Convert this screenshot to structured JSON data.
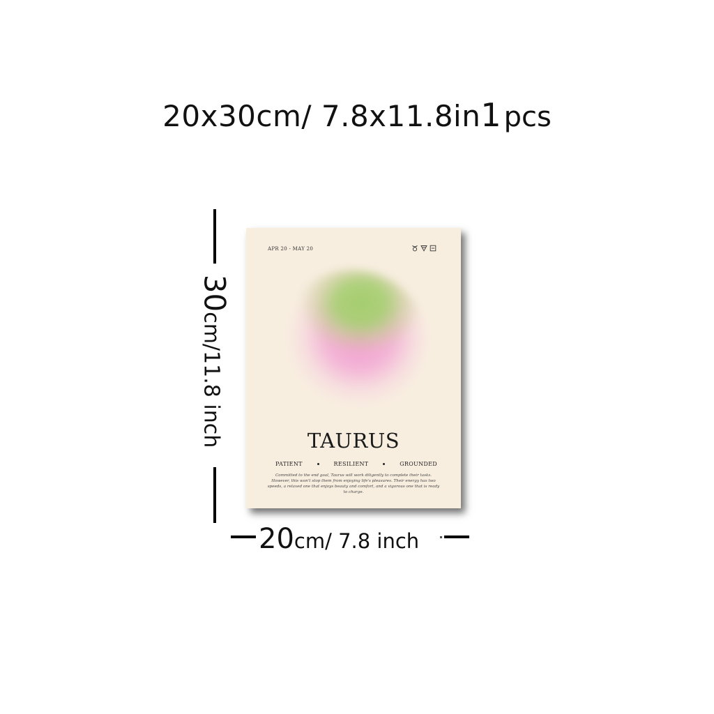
{
  "header": {
    "size_text": "20x30cm/ 7.8x11.8in",
    "quantity_number": "1",
    "quantity_unit": "pcs"
  },
  "poster": {
    "date_range": "APR 20 - MAY 20",
    "symbols": [
      "taurus-icon",
      "earth-triangle-icon",
      "fixed-square-icon"
    ],
    "title": "TAURUS",
    "traits": [
      "PATIENT",
      "RESILIENT",
      "GROUNDED"
    ],
    "description": "Committed to the end goal, Taurus will work diligently to complete their tasks. However, this won't stop them from enjoying life's pleasures. Their energy has two speeds, a relaxed one that enjoys beauty and comfort, and a vigorous one that is ready to charge.",
    "colors": {
      "background": "#f8eee0",
      "orb_green": "#a5cd6e",
      "orb_pink": "#f096cd"
    }
  },
  "dimensions": {
    "height_number": "30",
    "height_rest": "cm/11.8 inch",
    "width_number": "20",
    "width_rest": "cm/ 7.8 inch"
  }
}
